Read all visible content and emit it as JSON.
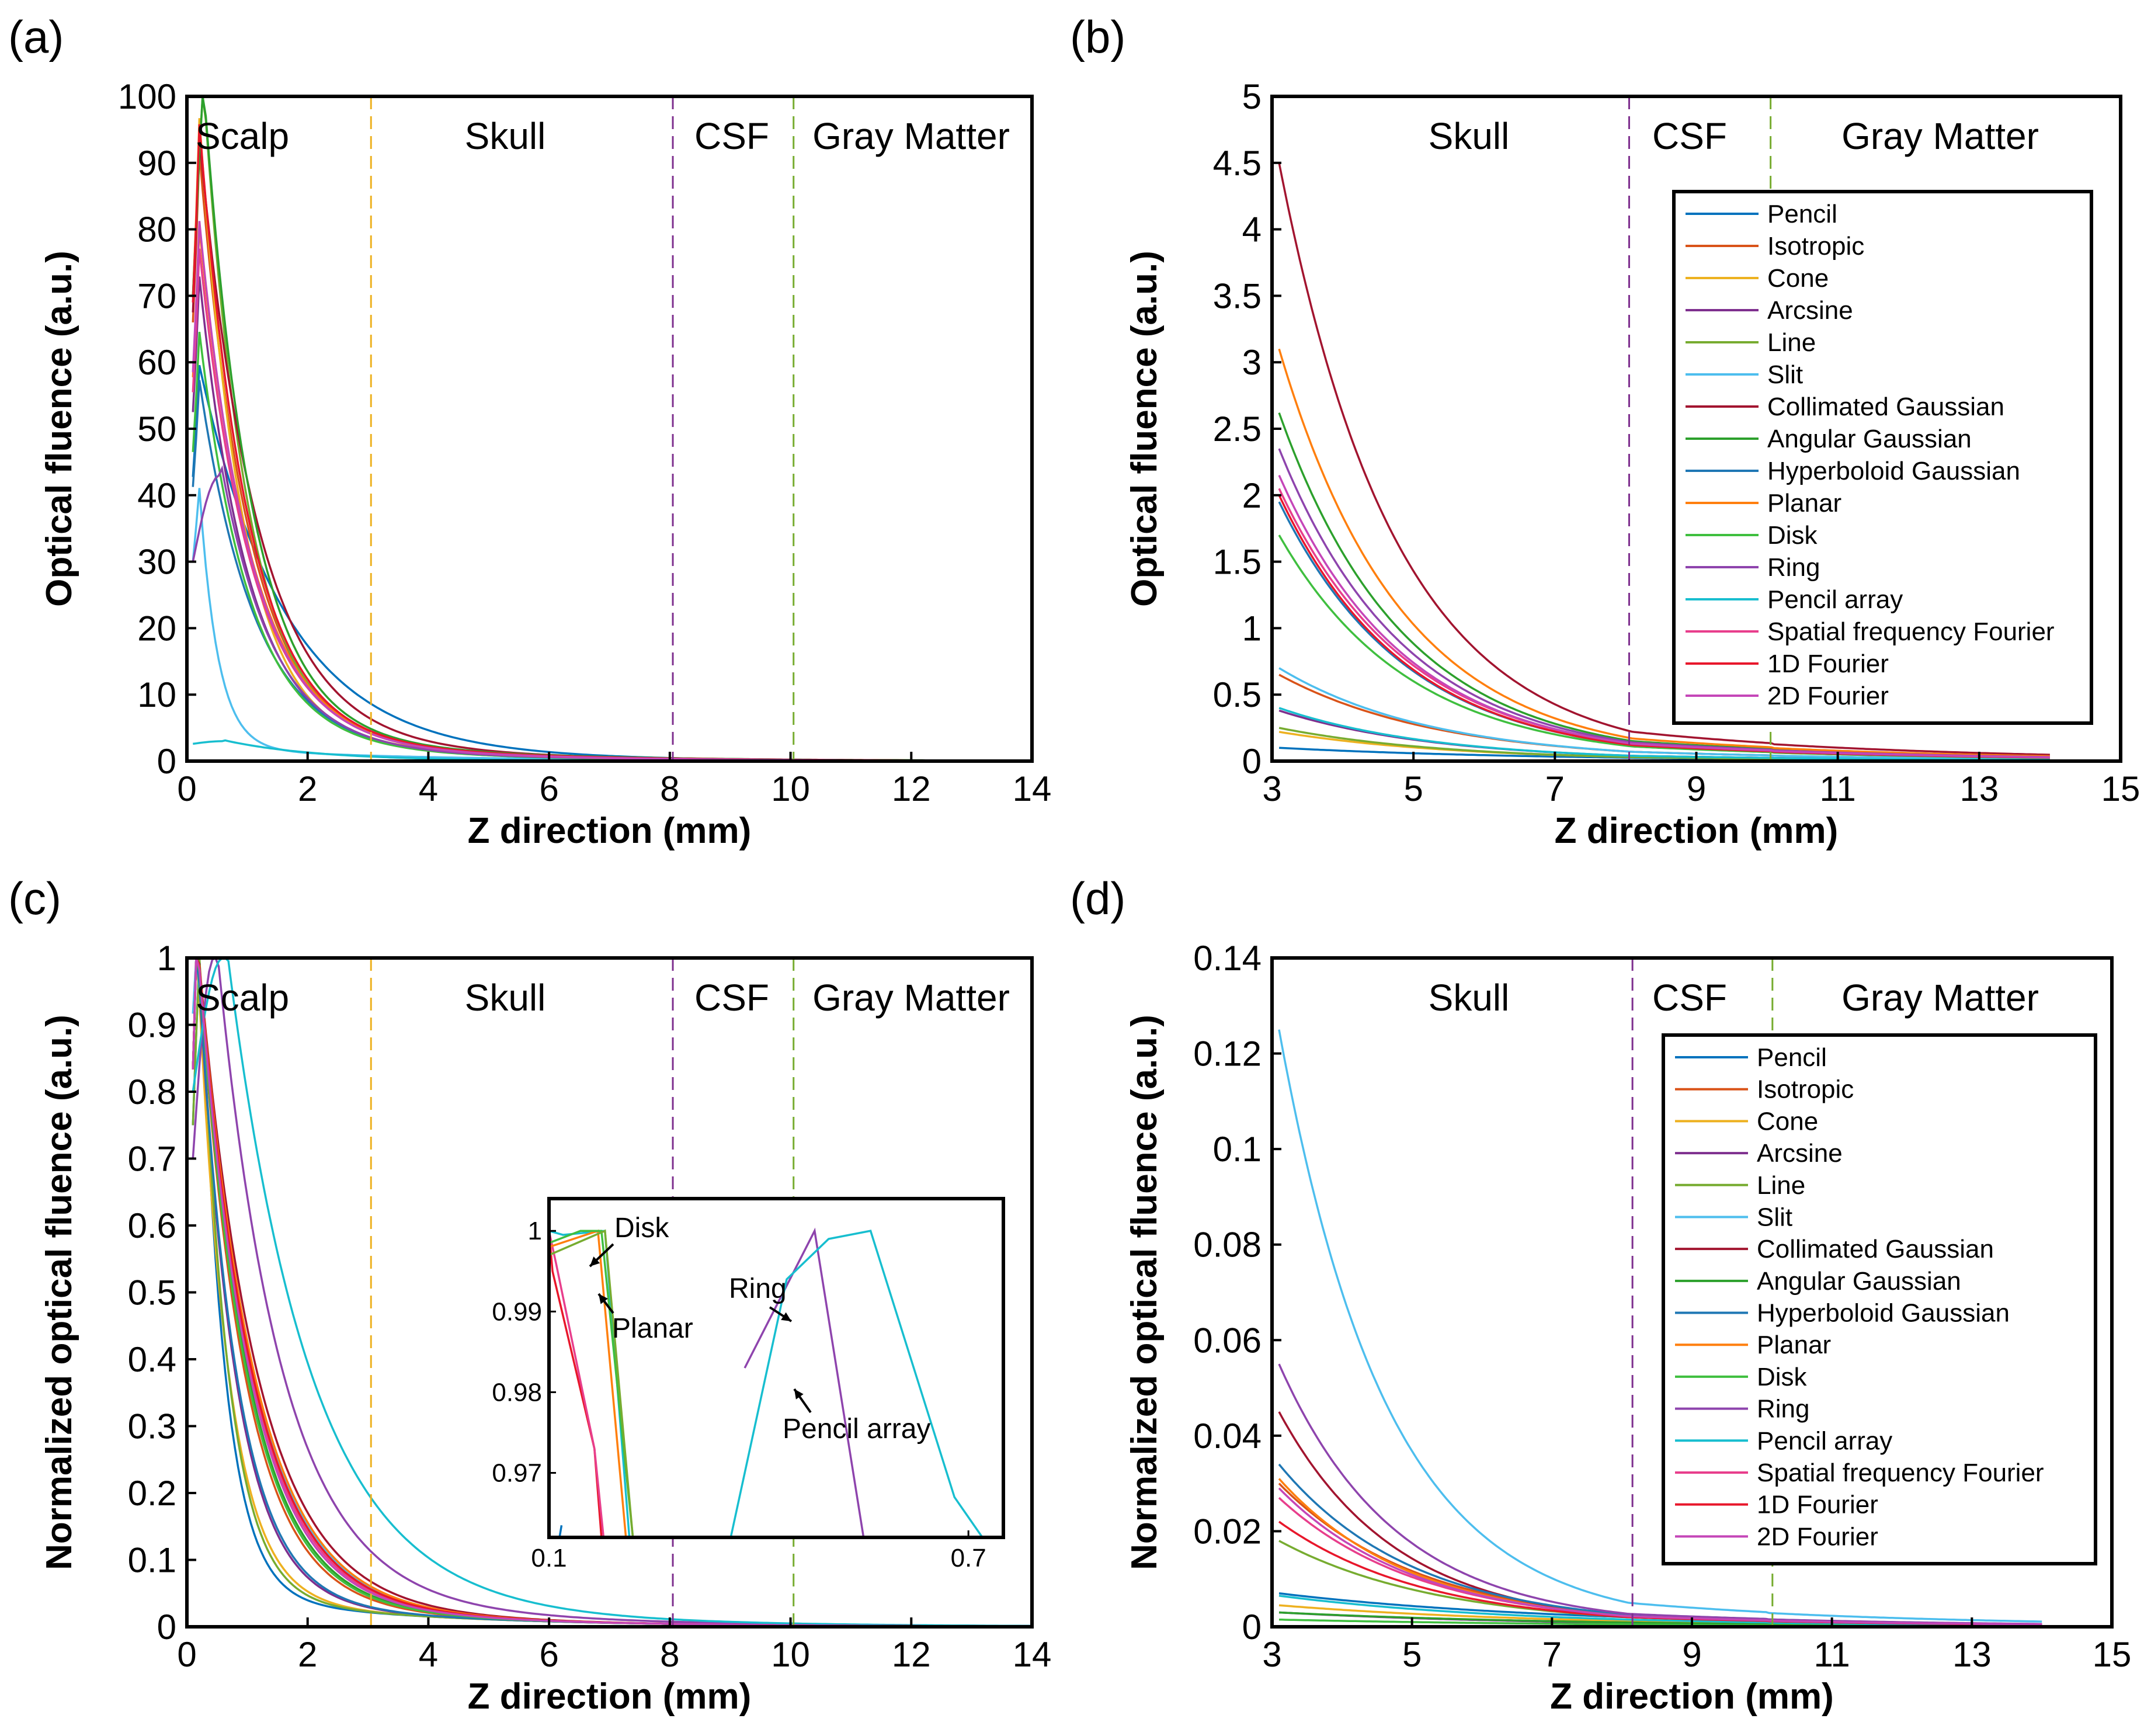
{
  "figure": {
    "series_names": [
      "Pencil",
      "Isotropic",
      "Cone",
      "Arcsine",
      "Line",
      "Slit",
      "Collimated Gaussian",
      "Angular Gaussian",
      "Hyperboloid Gaussian",
      "Planar",
      "Disk",
      "Ring",
      "Pencil array",
      "Spatial frequency Fourier",
      "1D Fourier",
      "2D Fourier"
    ],
    "series_colors": [
      "#0072BD",
      "#D95319",
      "#EDB120",
      "#7E2F8E",
      "#77AC30",
      "#4DBEEE",
      "#A2142F",
      "#2ca02c",
      "#1f77b4",
      "#ff7f0e",
      "#3fbf3f",
      "#8e44ad",
      "#17becf",
      "#e83e8c",
      "#e8172b",
      "#c546b8"
    ],
    "boundary_colors": {
      "scalp_skull": "#EDB120",
      "skull_csf": "#7E2F8E",
      "csf_gray": "#77AC30"
    }
  },
  "chart_data": [
    {
      "panel": "(a)",
      "type": "line",
      "xlabel": "Z direction (mm)",
      "ylabel": "Optical fluence (a.u.)",
      "xlim": [
        0,
        14
      ],
      "ylim": [
        0,
        100
      ],
      "xticks": [
        "0",
        "2",
        "4",
        "6",
        "8",
        "10",
        "12",
        "14"
      ],
      "yticks": [
        "0",
        "10",
        "20",
        "30",
        "40",
        "50",
        "60",
        "70",
        "80",
        "90",
        "100"
      ],
      "regions": [
        "Scalp",
        "Skull",
        "CSF",
        "Gray Matter"
      ],
      "boundaries": [
        3.05,
        8.05,
        10.05
      ],
      "series": [
        {
          "name": "Pencil",
          "values": [
            [
              "e",
              57,
              1.4,
              0.2
            ]
          ]
        },
        {
          "name": "Isotropic",
          "values": [
            [
              "e",
              88,
              0.8,
              0.2
            ]
          ]
        },
        {
          "name": "Cone",
          "values": [
            [
              "e",
              93,
              0.7,
              0.2
            ]
          ]
        },
        {
          "name": "Arcsine",
          "values": [
            [
              "e",
              70,
              0.8,
              0.2
            ]
          ]
        },
        {
          "name": "Line",
          "values": [
            [
              "e",
              100,
              0.72,
              0.25
            ]
          ]
        },
        {
          "name": "Slit",
          "values": [
            [
              "e",
              40,
              0.3,
              0.2
            ]
          ]
        },
        {
          "name": "Collimated Gaussian",
          "values": [
            [
              "e",
              90,
              0.95,
              0.2
            ]
          ]
        },
        {
          "name": "Angular Gaussian",
          "values": [
            [
              "e",
              100,
              0.78,
              0.25
            ]
          ]
        },
        {
          "name": "Hyperboloid Gaussian",
          "values": [
            [
              "e",
              55,
              0.9,
              0.2
            ]
          ]
        },
        {
          "name": "Planar",
          "values": [
            [
              "e",
              77,
              0.85,
              0.2
            ]
          ]
        },
        {
          "name": "Disk",
          "values": [
            [
              "e",
              62,
              0.82,
              0.2
            ]
          ]
        },
        {
          "name": "Ring",
          "values": [
            [
              "peak",
              30,
              43,
              0.55,
              0.85,
              0.2
            ]
          ]
        },
        {
          "name": "Pencil array",
          "values": [
            [
              "peak",
              2.6,
              3.0,
              0.6,
              1.5,
              0.15
            ]
          ]
        },
        {
          "name": "Spatial frequency Fourier",
          "values": [
            [
              "e",
              74,
              0.85,
              0.2
            ]
          ]
        },
        {
          "name": "1D Fourier",
          "values": [
            [
              "e",
              92,
              0.8,
              0.2
            ]
          ]
        },
        {
          "name": "2D Fourier",
          "values": [
            [
              "e",
              78,
              0.83,
              0.2
            ]
          ]
        }
      ]
    },
    {
      "panel": "(b)",
      "type": "line",
      "xlabel": "Z direction (mm)",
      "ylabel": "Optical fluence (a.u.)",
      "xlim": [
        3,
        15
      ],
      "ylim": [
        0,
        5
      ],
      "xticks": [
        "3",
        "5",
        "7",
        "9",
        "11",
        "13",
        "15"
      ],
      "yticks": [
        "0",
        "0.5",
        "1",
        "1.5",
        "2",
        "2.5",
        "3",
        "3.5",
        "4",
        "4.5",
        "5"
      ],
      "regions": [
        "Skull",
        "CSF",
        "Gray Matter"
      ],
      "boundaries": [
        8.05,
        10.05
      ],
      "legend_position": "upper-right",
      "series": [
        {
          "name": "Pencil",
          "values": [
            0.1,
            0.025
          ]
        },
        {
          "name": "Isotropic",
          "values": [
            0.65,
            0.07
          ]
        },
        {
          "name": "Cone",
          "values": [
            0.22,
            0.03
          ]
        },
        {
          "name": "Arcsine",
          "values": [
            0.38,
            0.04
          ]
        },
        {
          "name": "Line",
          "values": [
            0.25,
            0.03
          ]
        },
        {
          "name": "Slit",
          "values": [
            0.7,
            0.07
          ]
        },
        {
          "name": "Collimated Gaussian",
          "values": [
            4.5,
            0.22
          ]
        },
        {
          "name": "Angular Gaussian",
          "values": [
            2.62,
            0.15
          ]
        },
        {
          "name": "Hyperboloid Gaussian",
          "values": [
            1.95,
            0.12
          ]
        },
        {
          "name": "Planar",
          "values": [
            3.1,
            0.17
          ]
        },
        {
          "name": "Disk",
          "values": [
            1.7,
            0.11
          ]
        },
        {
          "name": "Ring",
          "values": [
            2.35,
            0.14
          ]
        },
        {
          "name": "Pencil array",
          "values": [
            0.4,
            0.04
          ]
        },
        {
          "name": "Spatial frequency Fourier",
          "values": [
            2.05,
            0.13
          ]
        },
        {
          "name": "1D Fourier",
          "values": [
            2.0,
            0.12
          ]
        },
        {
          "name": "2D Fourier",
          "values": [
            2.15,
            0.13
          ]
        }
      ]
    },
    {
      "panel": "(c)",
      "type": "line",
      "xlabel": "Z direction (mm)",
      "ylabel": "Normalized optical fluence (a.u.)",
      "xlim": [
        0,
        14
      ],
      "ylim": [
        0,
        1
      ],
      "xticks": [
        "0",
        "2",
        "4",
        "6",
        "8",
        "10",
        "12",
        "14"
      ],
      "yticks": [
        "0",
        "0.1",
        "0.2",
        "0.3",
        "0.4",
        "0.5",
        "0.6",
        "0.7",
        "0.8",
        "0.9",
        "1"
      ],
      "regions": [
        "Scalp",
        "Skull",
        "CSF",
        "Gray Matter"
      ],
      "boundaries": [
        3.05,
        8.05,
        10.05
      ],
      "series": [
        {
          "name": "Pencil",
          "values": [
            [
              "e",
              1,
              0.4,
              0.2
            ]
          ]
        },
        {
          "name": "Isotropic",
          "values": [
            [
              "e",
              1,
              0.75,
              0.15
            ]
          ]
        },
        {
          "name": "Cone",
          "values": [
            [
              "e",
              1,
              0.5,
              0.15
            ]
          ]
        },
        {
          "name": "Arcsine",
          "values": [
            [
              "e",
              1,
              0.6,
              0.15
            ]
          ]
        },
        {
          "name": "Line",
          "values": [
            [
              "e",
              1,
              0.45,
              0.2
            ]
          ]
        },
        {
          "name": "Slit",
          "values": [
            [
              "e",
              1,
              0.9,
              0.12
            ]
          ]
        },
        {
          "name": "Collimated Gaussian",
          "values": [
            [
              "e",
              1,
              0.95,
              0.15
            ]
          ]
        },
        {
          "name": "Angular Gaussian",
          "values": [
            [
              "e",
              1,
              0.8,
              0.15
            ]
          ]
        },
        {
          "name": "Hyperboloid Gaussian",
          "values": [
            [
              "e",
              1,
              0.62,
              0.15
            ]
          ]
        },
        {
          "name": "Planar",
          "values": [
            [
              "e",
              1,
              0.9,
              0.15
            ]
          ]
        },
        {
          "name": "Disk",
          "values": [
            [
              "e",
              1,
              0.78,
              0.15
            ]
          ]
        },
        {
          "name": "Ring",
          "values": [
            [
              "peak",
              0.7,
              1,
              0.45,
              1.05,
              0.15
            ]
          ]
        },
        {
          "name": "Pencil array",
          "values": [
            [
              "peak",
              0.8,
              1,
              0.6,
              1.35,
              0.15
            ]
          ]
        },
        {
          "name": "Spatial frequency Fourier",
          "values": [
            [
              "e",
              1,
              0.85,
              0.15
            ]
          ]
        },
        {
          "name": "1D Fourier",
          "values": [
            [
              "e",
              1,
              0.87,
              0.15
            ]
          ]
        },
        {
          "name": "2D Fourier",
          "values": [
            [
              "e",
              1,
              0.83,
              0.15
            ]
          ]
        }
      ],
      "inset": {
        "xlim": [
          0.1,
          0.75
        ],
        "ylim": [
          0.962,
          1.004
        ],
        "xticks": [
          "0.1",
          "0.7"
        ],
        "yticks": [
          "0.97",
          "0.98",
          "0.99",
          "1"
        ],
        "annotations": [
          "Disk",
          "Planar",
          "Ring",
          "Pencil array"
        ]
      }
    },
    {
      "panel": "(d)",
      "type": "line",
      "xlabel": "Z direction (mm)",
      "ylabel": "Normalized optical fluence (a.u.)",
      "xlim": [
        3,
        15
      ],
      "ylim": [
        0,
        0.14
      ],
      "xticks": [
        "3",
        "5",
        "7",
        "9",
        "11",
        "13",
        "15"
      ],
      "yticks": [
        "0",
        "0.02",
        "0.04",
        "0.06",
        "0.08",
        "0.1",
        "0.12",
        "0.14"
      ],
      "regions": [
        "Skull",
        "CSF",
        "Gray Matter"
      ],
      "boundaries": [
        8.15,
        10.15
      ],
      "legend_position": "upper-right",
      "series": [
        {
          "name": "Pencil",
          "values": [
            0.007,
            0.002
          ]
        },
        {
          "name": "Isotropic",
          "values": [
            0.03,
            0.0025
          ]
        },
        {
          "name": "Cone",
          "values": [
            0.0045,
            0.0012
          ]
        },
        {
          "name": "Arcsine",
          "values": [
            0.003,
            0.0008
          ]
        },
        {
          "name": "Line",
          "values": [
            0.018,
            0.002
          ]
        },
        {
          "name": "Slit",
          "values": [
            0.125,
            0.005
          ]
        },
        {
          "name": "Collimated Gaussian",
          "values": [
            0.045,
            0.0022
          ]
        },
        {
          "name": "Angular Gaussian",
          "values": [
            0.003,
            0.0009
          ]
        },
        {
          "name": "Hyperboloid Gaussian",
          "values": [
            0.034,
            0.0025
          ]
        },
        {
          "name": "Planar",
          "values": [
            0.031,
            0.0022
          ]
        },
        {
          "name": "Disk",
          "values": [
            0.0015,
            0.0005
          ]
        },
        {
          "name": "Ring",
          "values": [
            0.055,
            0.0027
          ]
        },
        {
          "name": "Pencil array",
          "values": [
            0.0065,
            0.0015
          ]
        },
        {
          "name": "Spatial frequency Fourier",
          "values": [
            0.027,
            0.0022
          ]
        },
        {
          "name": "1D Fourier",
          "values": [
            0.022,
            0.002
          ]
        },
        {
          "name": "2D Fourier",
          "values": [
            0.029,
            0.0022
          ]
        }
      ]
    }
  ]
}
